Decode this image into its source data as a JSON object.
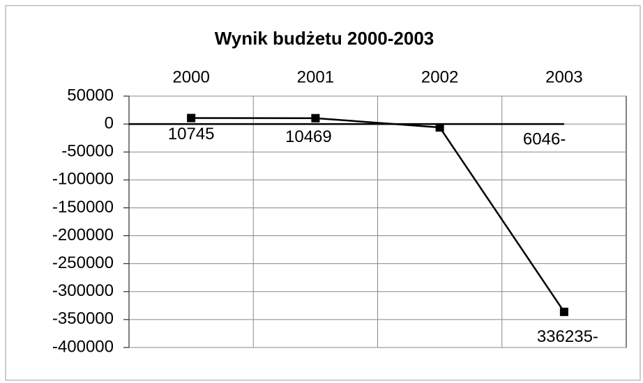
{
  "chart_data": {
    "type": "line",
    "title": "Wynik budżetu 2000-2003",
    "categories": [
      "2000",
      "2001",
      "2002",
      "2003"
    ],
    "values": [
      10745,
      10469,
      -6046,
      -336235
    ],
    "value_labels": [
      "10745",
      "10469",
      "6046-",
      "336235-"
    ],
    "color": "#000000",
    "ylim": [
      -400000,
      50000
    ],
    "yticks": [
      50000,
      0,
      -50000,
      -100000,
      -150000,
      -200000,
      -250000,
      -300000,
      -350000,
      -400000
    ],
    "grid": true
  }
}
